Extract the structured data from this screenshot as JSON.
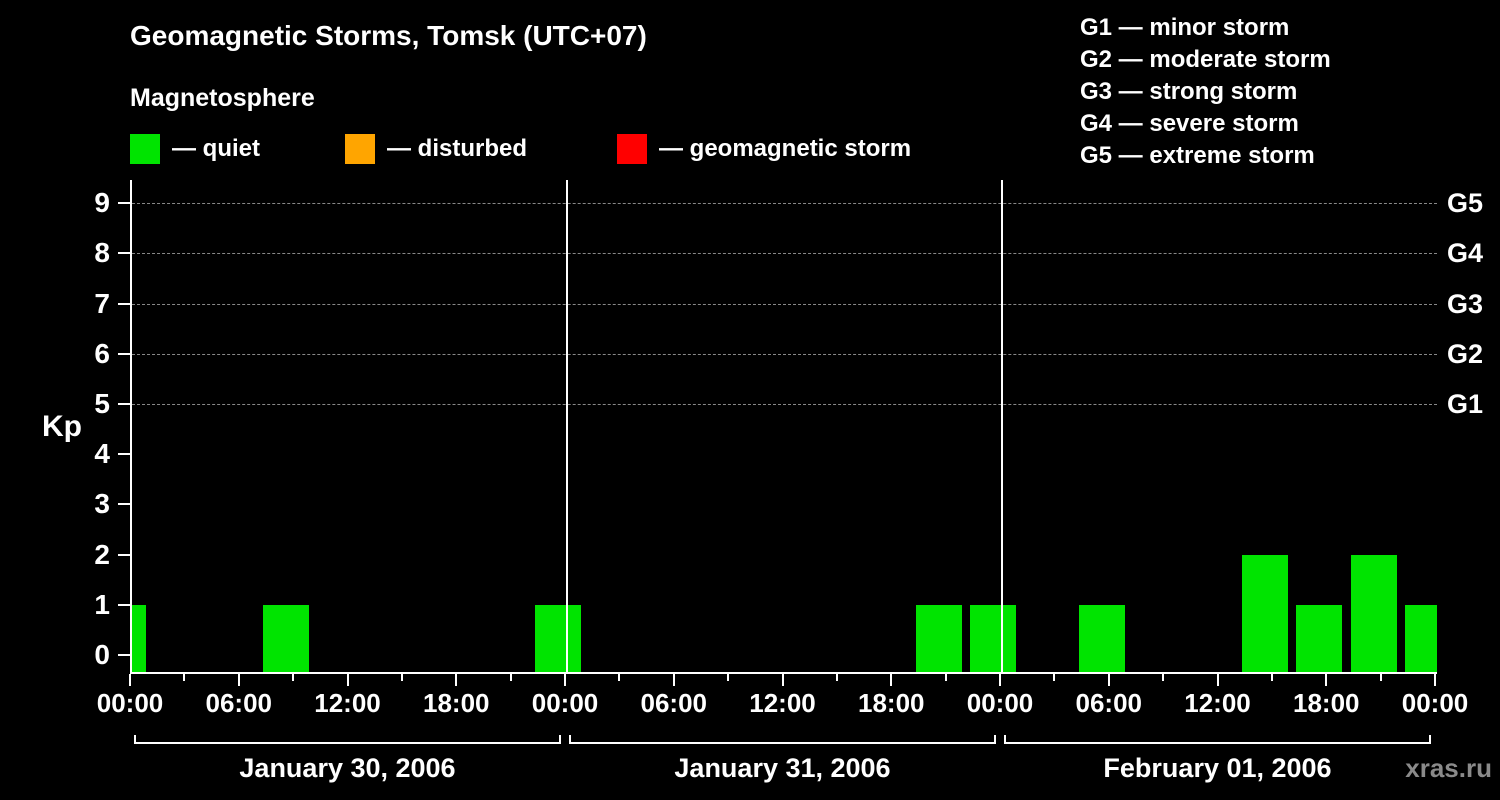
{
  "header": {
    "title": "Geomagnetic Storms, Tomsk (UTC+07)",
    "subtitle": "Magnetosphere"
  },
  "legend": {
    "items": [
      {
        "name": "quiet",
        "label": "— quiet",
        "color": "#00e400"
      },
      {
        "name": "disturbed",
        "label": "— disturbed",
        "color": "#ffa500"
      },
      {
        "name": "geomagnetic-storm",
        "label": "— geomagnetic storm",
        "color": "#ff0000"
      }
    ]
  },
  "storm_scale_legend": {
    "items": [
      "G1 — minor storm",
      "G2 — moderate storm",
      "G3 — strong storm",
      "G4 — severe storm",
      "G5 — extreme storm"
    ]
  },
  "watermark": "xras.ru",
  "chart_data": {
    "type": "bar",
    "title": "Geomagnetic Storms, Tomsk (UTC+07)",
    "xlabel": "",
    "ylabel": "Kp",
    "ylim": [
      0,
      9.5
    ],
    "y_ticks": [
      0,
      1,
      2,
      3,
      4,
      5,
      6,
      7,
      8,
      9
    ],
    "grid": "dashed horizontal lines at Kp 5 to 9",
    "legend_position": "top",
    "bar_color": "#00e400",
    "axis_color": "#ffffff",
    "grid_color": "#888888",
    "interval_hours": 3,
    "hours_total": 72,
    "x_tick_labels": [
      "00:00",
      "06:00",
      "12:00",
      "18:00",
      "00:00",
      "06:00",
      "12:00",
      "18:00",
      "00:00",
      "06:00",
      "12:00",
      "18:00",
      "00:00"
    ],
    "g_levels": [
      {
        "label": "G5",
        "kp": 9
      },
      {
        "label": "G4",
        "kp": 8
      },
      {
        "label": "G3",
        "kp": 7
      },
      {
        "label": "G2",
        "kp": 6
      },
      {
        "label": "G1",
        "kp": 5
      }
    ],
    "previous_day_partial_kp": 1,
    "days": [
      {
        "date_label": "January 30, 2006",
        "kp_3h": [
          0,
          0,
          1,
          0,
          0,
          0,
          0,
          1
        ]
      },
      {
        "date_label": "January 31, 2006",
        "kp_3h": [
          0,
          0,
          0,
          0,
          0,
          0,
          1,
          1
        ]
      },
      {
        "date_label": "February 01, 2006",
        "kp_3h": [
          0,
          1,
          0,
          0,
          2,
          1,
          2,
          1
        ]
      }
    ]
  }
}
